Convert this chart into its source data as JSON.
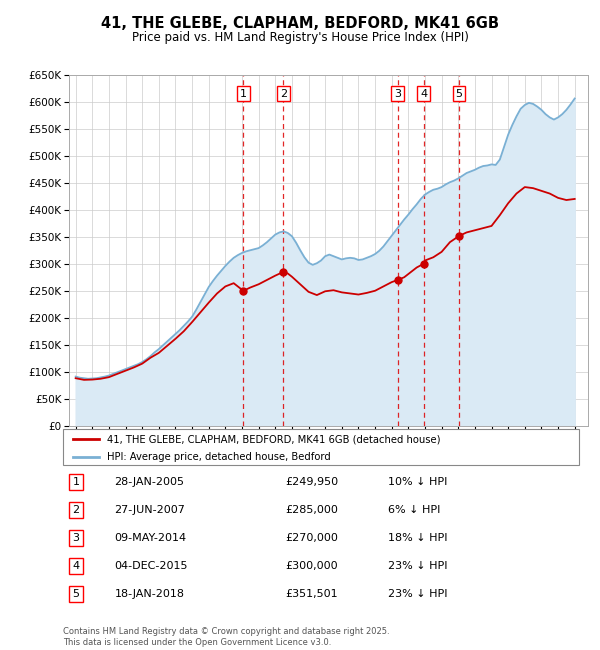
{
  "title": "41, THE GLEBE, CLAPHAM, BEDFORD, MK41 6GB",
  "subtitle": "Price paid vs. HM Land Registry's House Price Index (HPI)",
  "legend_label_red": "41, THE GLEBE, CLAPHAM, BEDFORD, MK41 6GB (detached house)",
  "legend_label_blue": "HPI: Average price, detached house, Bedford",
  "footer": "Contains HM Land Registry data © Crown copyright and database right 2025.\nThis data is licensed under the Open Government Licence v3.0.",
  "ylim": [
    0,
    650000
  ],
  "yticks": [
    0,
    50000,
    100000,
    150000,
    200000,
    250000,
    300000,
    350000,
    400000,
    450000,
    500000,
    550000,
    600000,
    650000
  ],
  "ytick_labels": [
    "£0",
    "£50K",
    "£100K",
    "£150K",
    "£200K",
    "£250K",
    "£300K",
    "£350K",
    "£400K",
    "£450K",
    "£500K",
    "£550K",
    "£600K",
    "£650K"
  ],
  "xlim_start": 1994.6,
  "xlim_end": 2025.8,
  "transactions": [
    {
      "num": 1,
      "date": "28-JAN-2005",
      "year": 2005.08,
      "price": 249950,
      "pct": "10%",
      "dir": "↓"
    },
    {
      "num": 2,
      "date": "27-JUN-2007",
      "year": 2007.49,
      "price": 285000,
      "pct": "6%",
      "dir": "↓"
    },
    {
      "num": 3,
      "date": "09-MAY-2014",
      "year": 2014.36,
      "price": 270000,
      "pct": "18%",
      "dir": "↓"
    },
    {
      "num": 4,
      "date": "04-DEC-2015",
      "year": 2015.92,
      "price": 300000,
      "pct": "23%",
      "dir": "↓"
    },
    {
      "num": 5,
      "date": "18-JAN-2018",
      "year": 2018.05,
      "price": 351501,
      "pct": "23%",
      "dir": "↓"
    }
  ],
  "red_color": "#cc0000",
  "blue_color": "#7ab0d4",
  "blue_fill_color": "#daeaf5",
  "vline_color": "#dd0000",
  "background_color": "#ffffff",
  "grid_color": "#cccccc",
  "hpi_data_years": [
    1995.0,
    1995.25,
    1995.5,
    1995.75,
    1996.0,
    1996.25,
    1996.5,
    1996.75,
    1997.0,
    1997.25,
    1997.5,
    1997.75,
    1998.0,
    1998.25,
    1998.5,
    1998.75,
    1999.0,
    1999.25,
    1999.5,
    1999.75,
    2000.0,
    2000.25,
    2000.5,
    2000.75,
    2001.0,
    2001.25,
    2001.5,
    2001.75,
    2002.0,
    2002.25,
    2002.5,
    2002.75,
    2003.0,
    2003.25,
    2003.5,
    2003.75,
    2004.0,
    2004.25,
    2004.5,
    2004.75,
    2005.0,
    2005.25,
    2005.5,
    2005.75,
    2006.0,
    2006.25,
    2006.5,
    2006.75,
    2007.0,
    2007.25,
    2007.5,
    2007.75,
    2008.0,
    2008.25,
    2008.5,
    2008.75,
    2009.0,
    2009.25,
    2009.5,
    2009.75,
    2010.0,
    2010.25,
    2010.5,
    2010.75,
    2011.0,
    2011.25,
    2011.5,
    2011.75,
    2012.0,
    2012.25,
    2012.5,
    2012.75,
    2013.0,
    2013.25,
    2013.5,
    2013.75,
    2014.0,
    2014.25,
    2014.5,
    2014.75,
    2015.0,
    2015.25,
    2015.5,
    2015.75,
    2016.0,
    2016.25,
    2016.5,
    2016.75,
    2017.0,
    2017.25,
    2017.5,
    2017.75,
    2018.0,
    2018.25,
    2018.5,
    2018.75,
    2019.0,
    2019.25,
    2019.5,
    2019.75,
    2020.0,
    2020.25,
    2020.5,
    2020.75,
    2021.0,
    2021.25,
    2021.5,
    2021.75,
    2022.0,
    2022.25,
    2022.5,
    2022.75,
    2023.0,
    2023.25,
    2023.5,
    2023.75,
    2024.0,
    2024.25,
    2024.5,
    2024.75,
    2025.0
  ],
  "hpi_values": [
    91000,
    89000,
    88000,
    87000,
    87500,
    88000,
    89500,
    91000,
    93000,
    96000,
    99000,
    102000,
    105000,
    108000,
    111000,
    114000,
    118000,
    123000,
    129000,
    136000,
    142000,
    149000,
    156000,
    163000,
    170000,
    177000,
    185000,
    193000,
    202000,
    215000,
    229000,
    243000,
    257000,
    268000,
    278000,
    287000,
    296000,
    304000,
    311000,
    316000,
    320000,
    323000,
    325000,
    327000,
    329000,
    334000,
    340000,
    347000,
    354000,
    358000,
    360000,
    357000,
    351000,
    339000,
    325000,
    312000,
    302000,
    298000,
    301000,
    306000,
    314000,
    317000,
    314000,
    311000,
    308000,
    310000,
    311000,
    310000,
    307000,
    308000,
    311000,
    314000,
    318000,
    324000,
    332000,
    342000,
    352000,
    362000,
    372000,
    382000,
    391000,
    401000,
    410000,
    420000,
    428000,
    433000,
    437000,
    439000,
    442000,
    447000,
    451000,
    454000,
    458000,
    463000,
    468000,
    471000,
    474000,
    478000,
    481000,
    482000,
    484000,
    483000,
    493000,
    516000,
    539000,
    557000,
    573000,
    587000,
    594000,
    598000,
    596000,
    591000,
    585000,
    577000,
    571000,
    567000,
    571000,
    577000,
    585000,
    595000,
    606000
  ],
  "red_data_years": [
    1995.0,
    1995.5,
    1996.0,
    1996.5,
    1997.0,
    1997.5,
    1998.0,
    1998.5,
    1999.0,
    1999.5,
    2000.0,
    2000.5,
    2001.0,
    2001.5,
    2002.0,
    2002.5,
    2003.0,
    2003.5,
    2004.0,
    2004.5,
    2005.08,
    2005.5,
    2006.0,
    2006.5,
    2007.0,
    2007.49,
    2007.75,
    2008.0,
    2008.5,
    2009.0,
    2009.5,
    2010.0,
    2010.5,
    2011.0,
    2011.5,
    2012.0,
    2012.5,
    2013.0,
    2013.5,
    2014.0,
    2014.36,
    2014.75,
    2015.0,
    2015.5,
    2015.92,
    2016.0,
    2016.5,
    2017.0,
    2017.5,
    2018.05,
    2018.5,
    2019.0,
    2019.5,
    2020.0,
    2020.5,
    2021.0,
    2021.5,
    2022.0,
    2022.5,
    2023.0,
    2023.5,
    2024.0,
    2024.5,
    2025.0
  ],
  "red_values": [
    88000,
    85000,
    85500,
    87000,
    90000,
    96000,
    102000,
    108000,
    115000,
    126000,
    135000,
    148000,
    161000,
    175000,
    192000,
    210000,
    228000,
    245000,
    258000,
    264000,
    249950,
    256000,
    262000,
    270000,
    278000,
    285000,
    282000,
    276000,
    262000,
    248000,
    242000,
    249000,
    251000,
    247000,
    245000,
    243000,
    246000,
    250000,
    258000,
    266000,
    270000,
    275000,
    281000,
    293000,
    300000,
    306000,
    312000,
    322000,
    340000,
    351501,
    358000,
    362000,
    366000,
    370000,
    390000,
    412000,
    430000,
    442000,
    440000,
    435000,
    430000,
    422000,
    418000,
    420000
  ]
}
